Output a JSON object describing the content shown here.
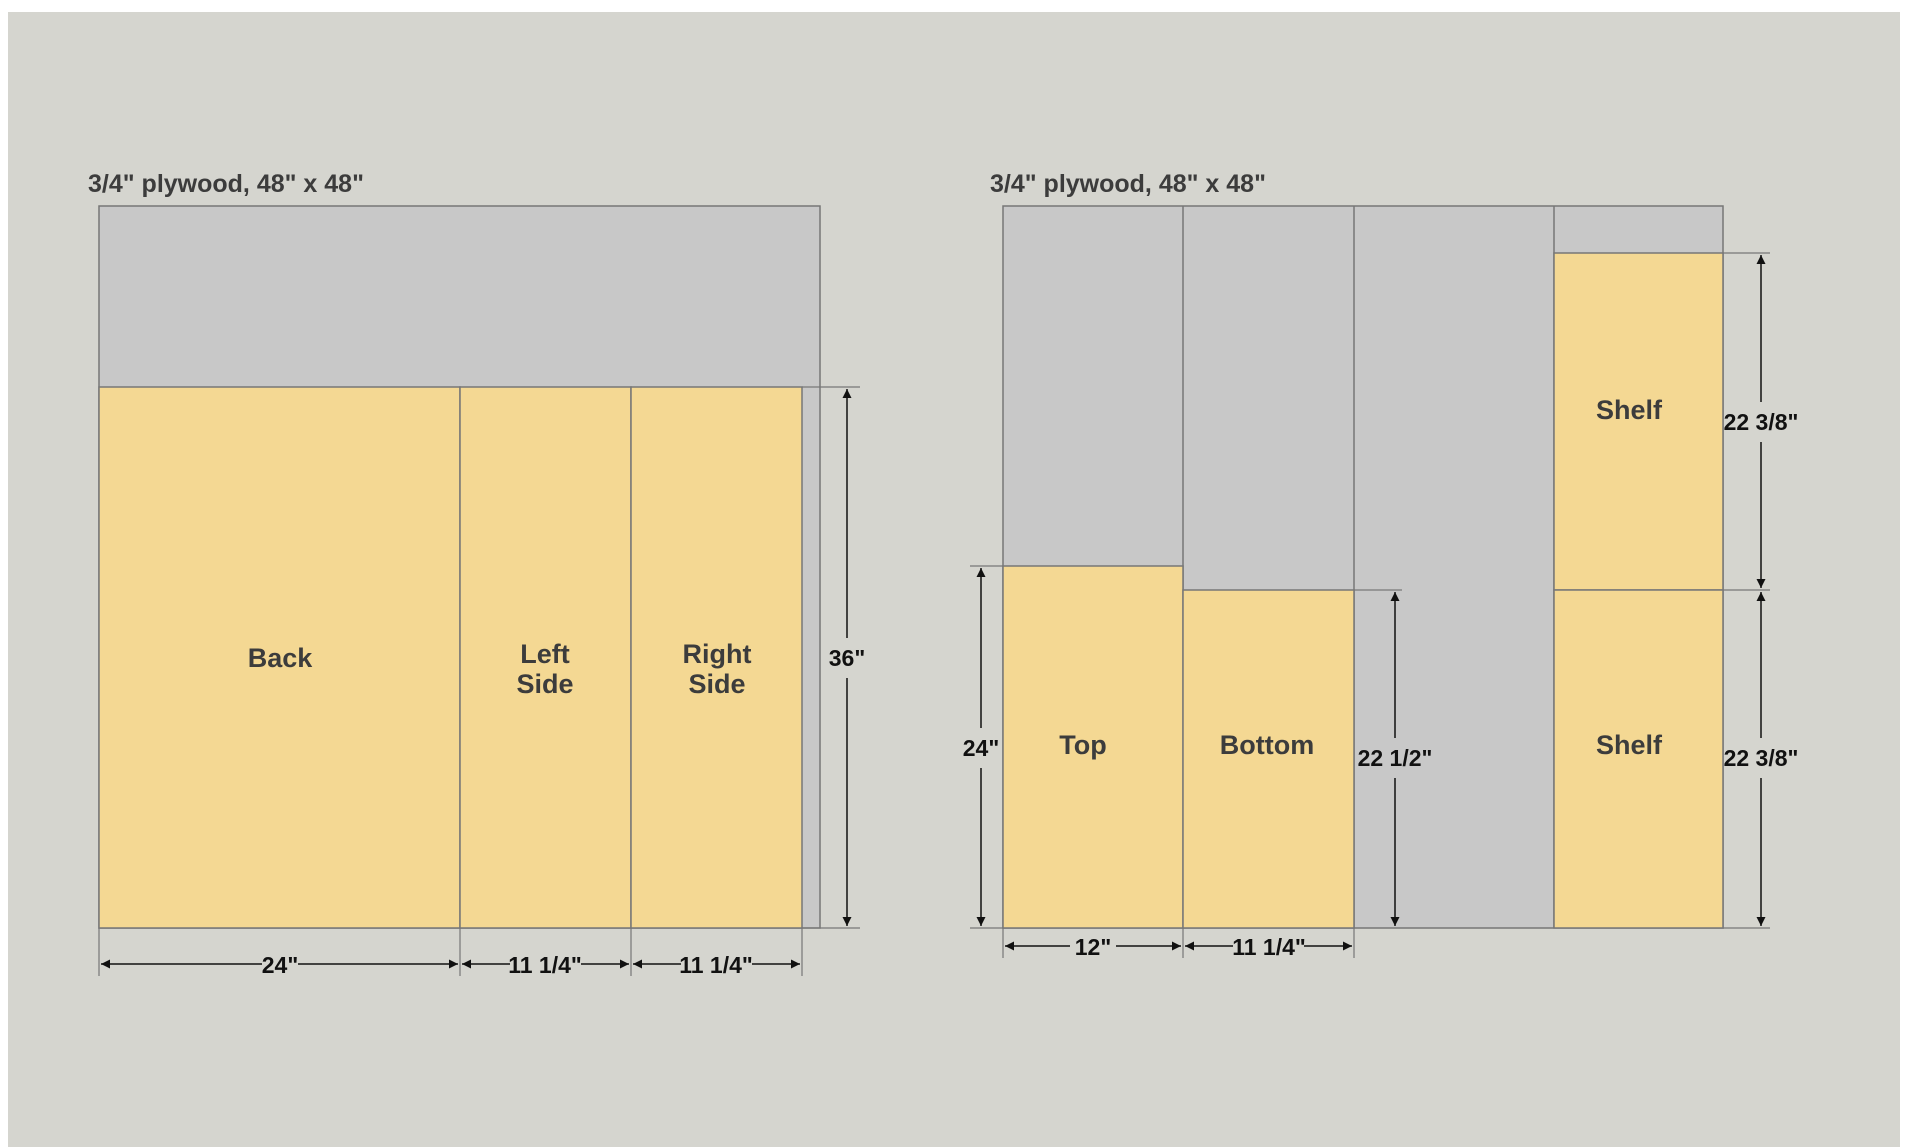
{
  "colors": {
    "background": "#d5d5cf",
    "sheet": "#c8c8c8",
    "part": "#f4d893",
    "line": "#777777",
    "text": "#3c3c3c",
    "dim": "#111111"
  },
  "sheets": [
    {
      "title": "3/4\" plywood, 48\" x 48\"",
      "parts": [
        {
          "label": [
            "Back"
          ]
        },
        {
          "label": [
            "Left",
            "Side"
          ]
        },
        {
          "label": [
            "Right",
            "Side"
          ]
        }
      ],
      "dimensions": [
        {
          "text": "24\""
        },
        {
          "text": "11 1/4\""
        },
        {
          "text": "11 1/4\""
        },
        {
          "text": "36\""
        }
      ]
    },
    {
      "title": "3/4\" plywood, 48\" x 48\"",
      "parts": [
        {
          "label": [
            "Top"
          ]
        },
        {
          "label": [
            "Bottom"
          ]
        },
        {
          "label": [
            "Shelf"
          ]
        },
        {
          "label": [
            "Shelf"
          ]
        }
      ],
      "dimensions": [
        {
          "text": "12\""
        },
        {
          "text": "11 1/4\""
        },
        {
          "text": "24\""
        },
        {
          "text": "22 1/2\""
        },
        {
          "text": "22 3/8\""
        },
        {
          "text": "22 3/8\""
        }
      ]
    }
  ]
}
